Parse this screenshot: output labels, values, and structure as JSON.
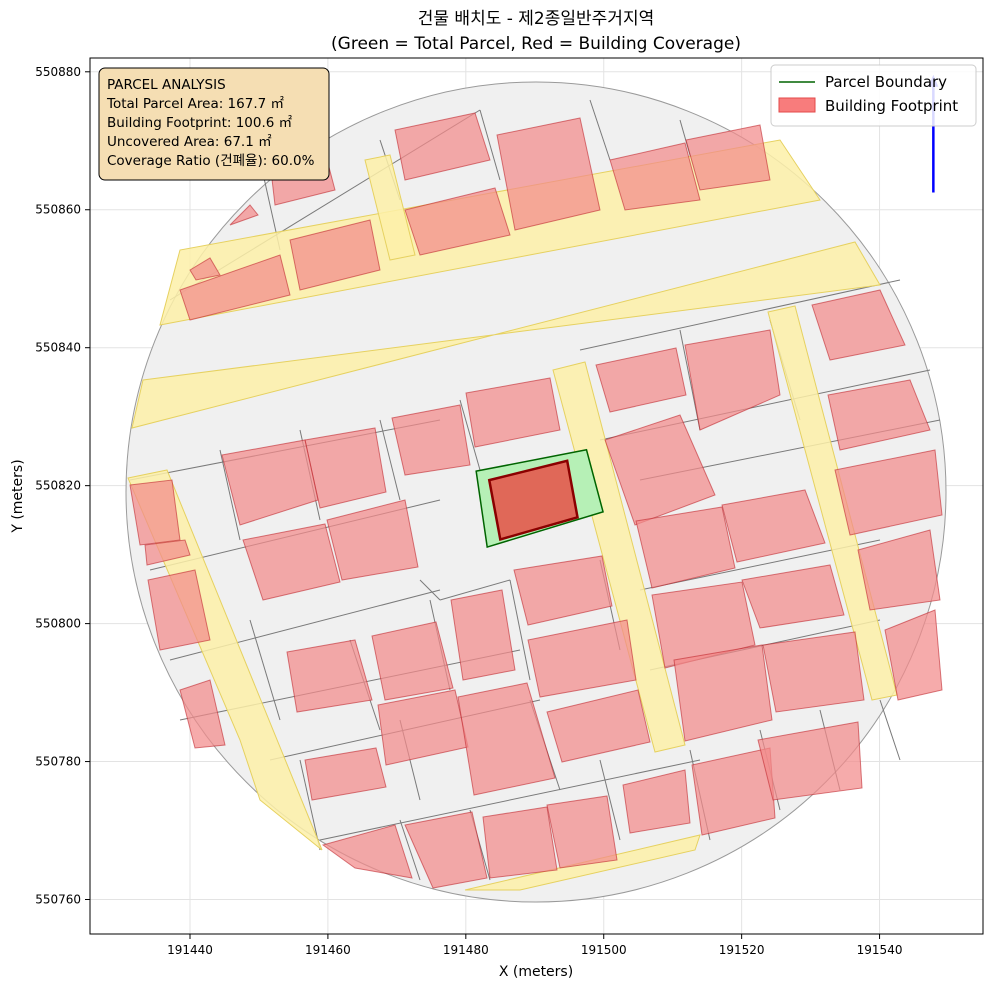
{
  "chart_data": {
    "type": "map",
    "title_line1": "건물 배치도 - 제2종일반주거지역",
    "title_line2": "(Green = Total Parcel, Red = Building Coverage)",
    "xlabel": "X (meters)",
    "ylabel": "Y (meters)",
    "xlim": [
      191425.5,
      191555
    ],
    "ylim": [
      550755,
      550882
    ],
    "x_ticks": [
      191440,
      191460,
      191480,
      191500,
      191520,
      191540
    ],
    "x_tick_labels": [
      "191440",
      "191460",
      "191480",
      "191500",
      "191520",
      "191540"
    ],
    "y_ticks": [
      550760,
      550780,
      550800,
      550820,
      550840,
      550860,
      550880
    ],
    "y_tick_labels": [
      "550760",
      "550780",
      "550800",
      "550820",
      "550840",
      "550860",
      "550880"
    ],
    "grid": true,
    "info_box": {
      "lines": [
        "PARCEL ANALYSIS",
        "Total Parcel Area: 167.7 ㎡",
        "Building Footprint: 100.6 ㎡",
        "Uncovered Area: 67.1 ㎡",
        "Coverage Ratio (건폐율): 60.0%"
      ]
    },
    "legend": {
      "placement": "top-right",
      "entries": [
        {
          "label": "Parcel Boundary",
          "kind": "line",
          "color": "#006400"
        },
        {
          "label": "Building Footprint",
          "kind": "patch",
          "color": "#f87c7c"
        }
      ]
    },
    "target_parcel": [
      [
        191481.5,
        550822.1
      ],
      [
        191497.5,
        550825.2
      ],
      [
        191499.9,
        550816.2
      ],
      [
        191483.1,
        550811.1
      ]
    ],
    "target_building": [
      [
        191483.4,
        550820.8
      ],
      [
        191494.7,
        550823.6
      ],
      [
        191496.2,
        550815.4
      ],
      [
        191485.0,
        550812.2
      ]
    ],
    "north_arrow": {
      "x": 191547.8,
      "y_start": 550862.5,
      "y_end": 550879.0
    },
    "colors": {
      "buffer_fill": "#f0f0f0",
      "buffer_edge": "#9a9a9a",
      "road": "#fdf0a8",
      "road_edge": "#e6d160",
      "building": "#f28b8b",
      "building_edge": "#c0282e",
      "parcel_green": "#b6f0b6",
      "parcel_edge": "#006400",
      "target_building": "#e06858",
      "target_edge": "#8b0000",
      "info_box_bg": "#f5deb3"
    }
  }
}
